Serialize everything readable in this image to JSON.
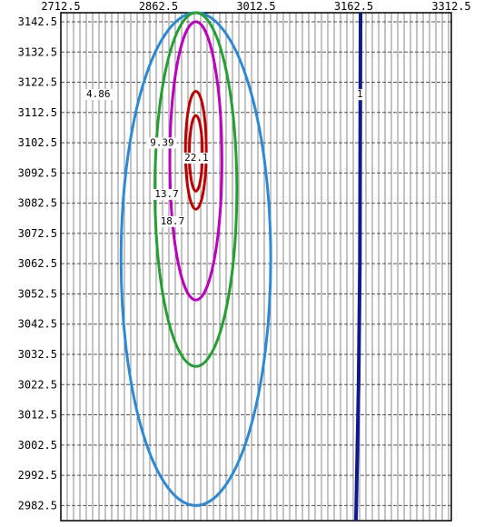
{
  "chart_data": {
    "type": "contour",
    "x_ticks": [
      "2712.5",
      "2862.5",
      "3012.5",
      "3162.5",
      "3312.5"
    ],
    "y_ticks": [
      "3142.5",
      "3132.5",
      "3122.5",
      "3112.5",
      "3102.5",
      "3092.5",
      "3082.5",
      "3072.5",
      "3062.5",
      "3052.5",
      "3042.5",
      "3032.5",
      "3022.5",
      "3012.5",
      "3002.5",
      "2992.5",
      "2982.5"
    ],
    "xlim": [
      2712.5,
      3312.5
    ],
    "ylim": [
      2977.5,
      3145.5
    ],
    "grid": true,
    "center": [
      2920,
      3097
    ],
    "contours": [
      {
        "label": "1",
        "color": "#101890",
        "kind": "line",
        "x_top": 3173,
        "x_bottom": 3166
      },
      {
        "label": "4.86",
        "color": "#2a8ad8",
        "kind": "ellipse",
        "top": 3145.5,
        "bottom": 2982.5,
        "half_width": 115
      },
      {
        "label": "9.39",
        "color": "#22a030",
        "kind": "ellipse",
        "top": 3145.5,
        "bottom": 3028.5,
        "half_width": 63
      },
      {
        "label": "13.7",
        "color": "#c000c0",
        "kind": "ellipse",
        "top": 3142.5,
        "bottom": 3050.5,
        "half_width": 40
      },
      {
        "label": "18.7",
        "color": "#c00000",
        "kind": "ellipse",
        "top": 3119.5,
        "bottom": 3080.5,
        "half_width": 16
      },
      {
        "label": "22.1",
        "color": "#c00000",
        "kind": "ellipse",
        "top": 3111.5,
        "bottom": 3086.5,
        "half_width": 10
      }
    ],
    "labels": [
      {
        "text": "4.86",
        "x": 2770,
        "y": 3117.5,
        "color": "#000000"
      },
      {
        "text": "1",
        "x": 3172,
        "y": 3117.5,
        "color": "#000000"
      },
      {
        "text": "9.39",
        "x": 2868,
        "y": 3101.5,
        "color": "#000000"
      },
      {
        "text": "22.1",
        "x": 2921,
        "y": 3096.5,
        "color": "#000000"
      },
      {
        "text": "13.7",
        "x": 2875,
        "y": 3084.5,
        "color": "#000000"
      },
      {
        "text": "18.7",
        "x": 2884,
        "y": 3075.5,
        "color": "#000000"
      }
    ]
  }
}
